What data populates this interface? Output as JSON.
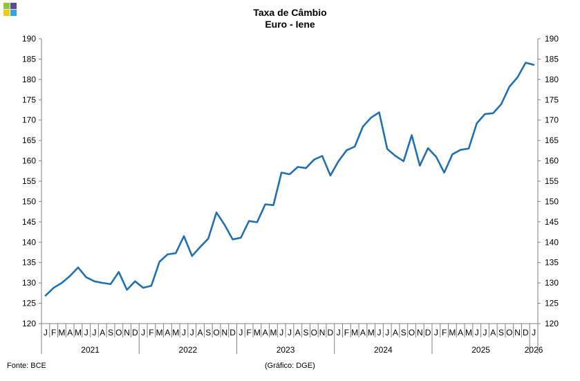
{
  "title": "Taxa de Câmbio",
  "subtitle": "Euro - Iene",
  "source": "Fonte: BCE",
  "credit": "(Gráfico: DGE)",
  "colors": {
    "line": "#1f6fb4",
    "axis": "#808080",
    "logo": [
      "#8dc63f",
      "#5b4b9b",
      "#f9c80e",
      "#29abe2"
    ]
  },
  "chart_data": {
    "type": "line",
    "title": "Taxa de Câmbio",
    "subtitle": "Euro - Iene",
    "ylim": [
      120,
      190
    ],
    "yticks": [
      120,
      125,
      130,
      135,
      140,
      145,
      150,
      155,
      160,
      165,
      170,
      175,
      180,
      185,
      190
    ],
    "y_axis_both_sides": true,
    "grid": false,
    "month_labels": [
      "J",
      "F",
      "M",
      "A",
      "M",
      "J",
      "J",
      "A",
      "S",
      "O",
      "N",
      "D",
      "J",
      "F",
      "M",
      "A",
      "M",
      "J",
      "J",
      "A",
      "S",
      "O",
      "N",
      "D",
      "J",
      "F",
      "M",
      "A",
      "M",
      "J",
      "J",
      "A",
      "S",
      "O",
      "N",
      "D",
      "J",
      "F",
      "M",
      "A",
      "M",
      "J",
      "J",
      "A",
      "S",
      "O",
      "N",
      "D",
      "J",
      "F",
      "M",
      "A",
      "M",
      "J",
      "J",
      "A",
      "S",
      "O",
      "N",
      "D",
      "J"
    ],
    "year_labels": [
      "2021",
      "2022",
      "2023",
      "2024",
      "2025",
      "2026"
    ],
    "series": [
      {
        "values": [
          126.9,
          128.8,
          130.0,
          131.7,
          133.8,
          131.4,
          130.4,
          130.0,
          129.7,
          132.7,
          128.3,
          130.4,
          128.8,
          129.3,
          135.2,
          137.0,
          137.3,
          141.5,
          136.6,
          138.8,
          140.9,
          147.3,
          144.3,
          140.7,
          141.1,
          145.2,
          144.9,
          149.3,
          149.1,
          157.1,
          156.7,
          158.5,
          158.2,
          160.3,
          161.2,
          156.4,
          159.9,
          162.6,
          163.5,
          168.4,
          170.6,
          171.9,
          162.9,
          161.2,
          159.9,
          166.3,
          158.8,
          163.1,
          161.0,
          157.1,
          161.6,
          162.7,
          163.0,
          169.2,
          171.5,
          171.7,
          173.9,
          178.2,
          180.5,
          184.1,
          183.6
        ]
      }
    ]
  }
}
